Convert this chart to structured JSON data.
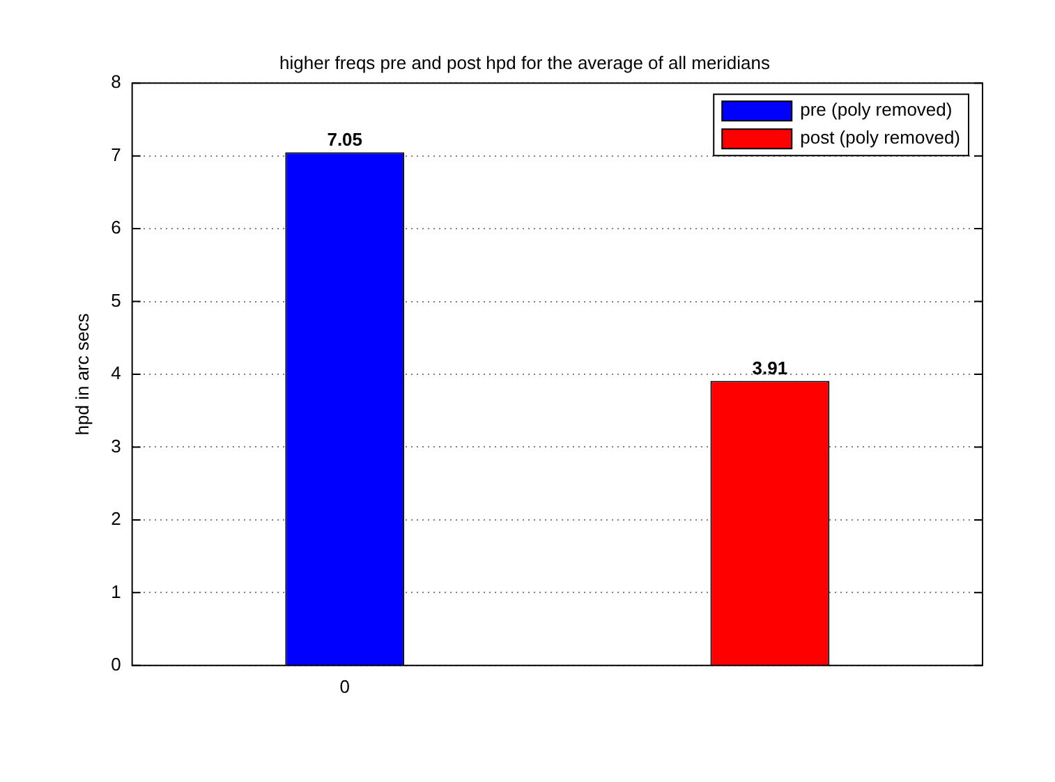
{
  "chart_data": {
    "type": "bar",
    "title": "higher freqs pre and post hpd for the average of all meridians",
    "ylabel": "hpd in arc secs",
    "categories": [
      "0",
      null
    ],
    "series": [
      {
        "name": "pre (poly removed)",
        "color": "#0000ff",
        "values": [
          7.05,
          null
        ]
      },
      {
        "name": "post (poly removed)",
        "color": "#ff0000",
        "values": [
          null,
          3.91
        ]
      }
    ],
    "ylim": [
      0,
      8
    ],
    "yticks": [
      0,
      1,
      2,
      3,
      4,
      5,
      6,
      7,
      8
    ],
    "grid": "y",
    "legend": "top right",
    "data_labels": true
  }
}
